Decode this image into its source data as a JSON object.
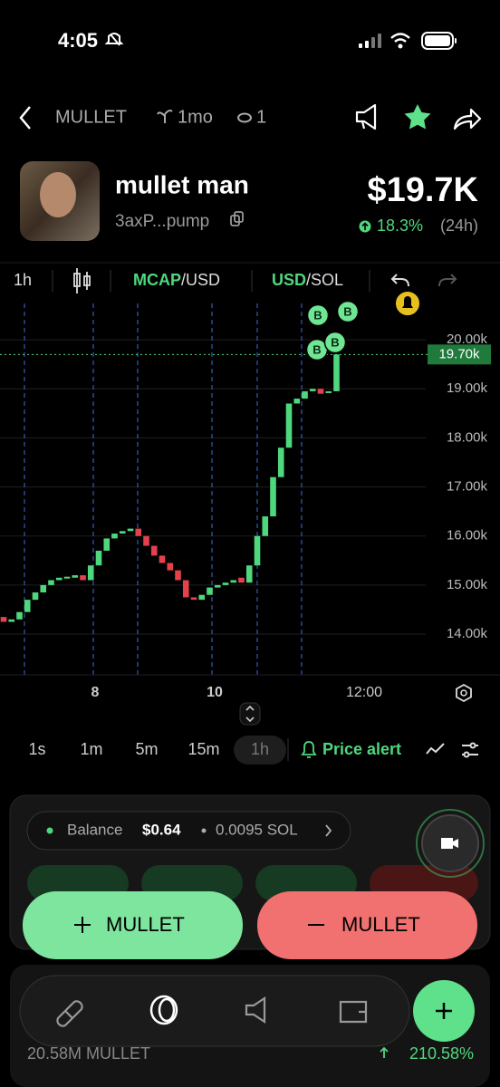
{
  "status_bar": {
    "time": "4:05"
  },
  "header": {
    "ticker": "MULLET",
    "age": "1mo",
    "watchers": "1"
  },
  "token": {
    "name": "mullet man",
    "address": "3axP...pump",
    "price": "$19.7K",
    "change": "18.3%",
    "period": "(24h)"
  },
  "toolbar": {
    "interval": "1h",
    "mcap": "MCAP",
    "usd": "/USD",
    "usd2": "USD",
    "sol": "/SOL"
  },
  "chart_data": {
    "type": "candlestick",
    "open": [
      14350,
      14250,
      14300,
      14450,
      14700,
      14850,
      15000,
      15100,
      15150,
      15150,
      15200,
      15100,
      15400,
      15700,
      15950,
      16050,
      16100,
      16150,
      16000,
      15800,
      15600,
      15450,
      15300,
      15100,
      14750,
      14700,
      14800,
      14950,
      15000,
      15050,
      15150,
      15050,
      15400,
      16000,
      16400,
      17200,
      17800,
      18700,
      18800,
      18950,
      19000,
      18950,
      18950
    ],
    "close": [
      14250,
      14300,
      14450,
      14700,
      14850,
      15000,
      15100,
      15150,
      15170,
      15200,
      15100,
      15400,
      15700,
      15950,
      16050,
      16100,
      16150,
      16000,
      15800,
      15600,
      15450,
      15300,
      15100,
      14750,
      14700,
      14800,
      14950,
      15000,
      15050,
      15100,
      15050,
      15400,
      16000,
      16400,
      17200,
      17800,
      18700,
      18800,
      18950,
      19000,
      18900,
      18950,
      19700
    ],
    "ylim": [
      13170,
      20740
    ],
    "yticks": [
      {
        "value": 20000,
        "label": "20.00k"
      },
      {
        "value": 19000,
        "label": "19.00k"
      },
      {
        "value": 18000,
        "label": "18.00k"
      },
      {
        "value": 17000,
        "label": "17.00k"
      },
      {
        "value": 16000,
        "label": "16.00k"
      },
      {
        "value": 15000,
        "label": "15.00k"
      },
      {
        "value": 14000,
        "label": "14.00k"
      }
    ],
    "x_labels": [
      "8",
      "10",
      "12:00"
    ],
    "price_line": {
      "value": 19700,
      "label": "19.70k"
    },
    "markers": [
      "B",
      "B",
      "B",
      "B"
    ],
    "up_color": "#4fd77d",
    "down_color": "#e5414c",
    "grid": true
  },
  "timeframes": {
    "items": [
      "1s",
      "1m",
      "5m",
      "15m",
      "1h"
    ],
    "price_alert": "Price alert"
  },
  "trade": {
    "balance_label": "Balance",
    "balance_usd": "$0.64",
    "balance_sol": "0.0095 SOL",
    "buy_label": "MULLET",
    "sell_label": "MULLET"
  },
  "holdings": {
    "amount": "20.58M MULLET",
    "change": "210.58%"
  }
}
